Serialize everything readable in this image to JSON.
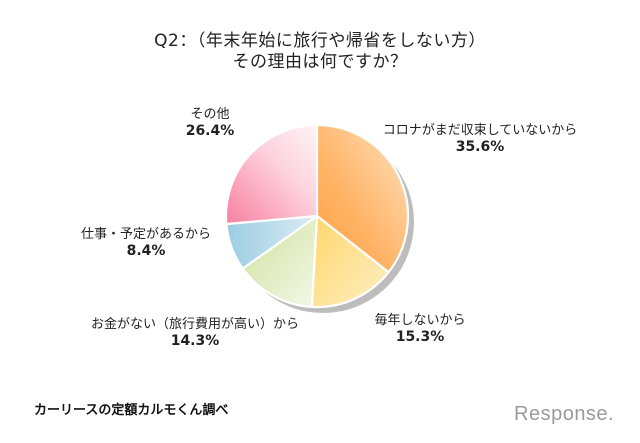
{
  "title": {
    "line1": "Q2：（年末年始に旅行や帰省をしない方）",
    "line2": "その理由は何ですか？"
  },
  "labels": [
    {
      "text": "コロナがまだ収束していないから",
      "pct": "35.6%"
    },
    {
      "text": "毎年しないから",
      "pct": "15.3%"
    },
    {
      "text": "お金がない（旅行費用が高い）から",
      "pct": "14.3%"
    },
    {
      "text": "仕事・予定があるから",
      "pct": "8.4%"
    },
    {
      "text": "その他",
      "pct": "26.4%"
    }
  ],
  "footer": {
    "source": "カーリースの定額カルモくん調べ",
    "logo": "Response."
  },
  "chart_data": {
    "type": "pie",
    "title": "Q2：（年末年始に旅行や帰省をしない方）その理由は何ですか？",
    "categories": [
      "コロナがまだ収束していないから",
      "毎年しないから",
      "お金がない（旅行費用が高い）から",
      "仕事・予定があるから",
      "その他"
    ],
    "values": [
      35.6,
      15.3,
      14.3,
      8.4,
      26.4
    ],
    "unit": "%",
    "start_angle": "12 o'clock, clockwise",
    "colors": [
      "#ffa94d",
      "#fdd86e",
      "#d4e4a8",
      "#a9d3e6",
      "#f890a8"
    ],
    "legend": "none (direct labels)",
    "source": "カーリースの定額カルモくん調べ"
  }
}
